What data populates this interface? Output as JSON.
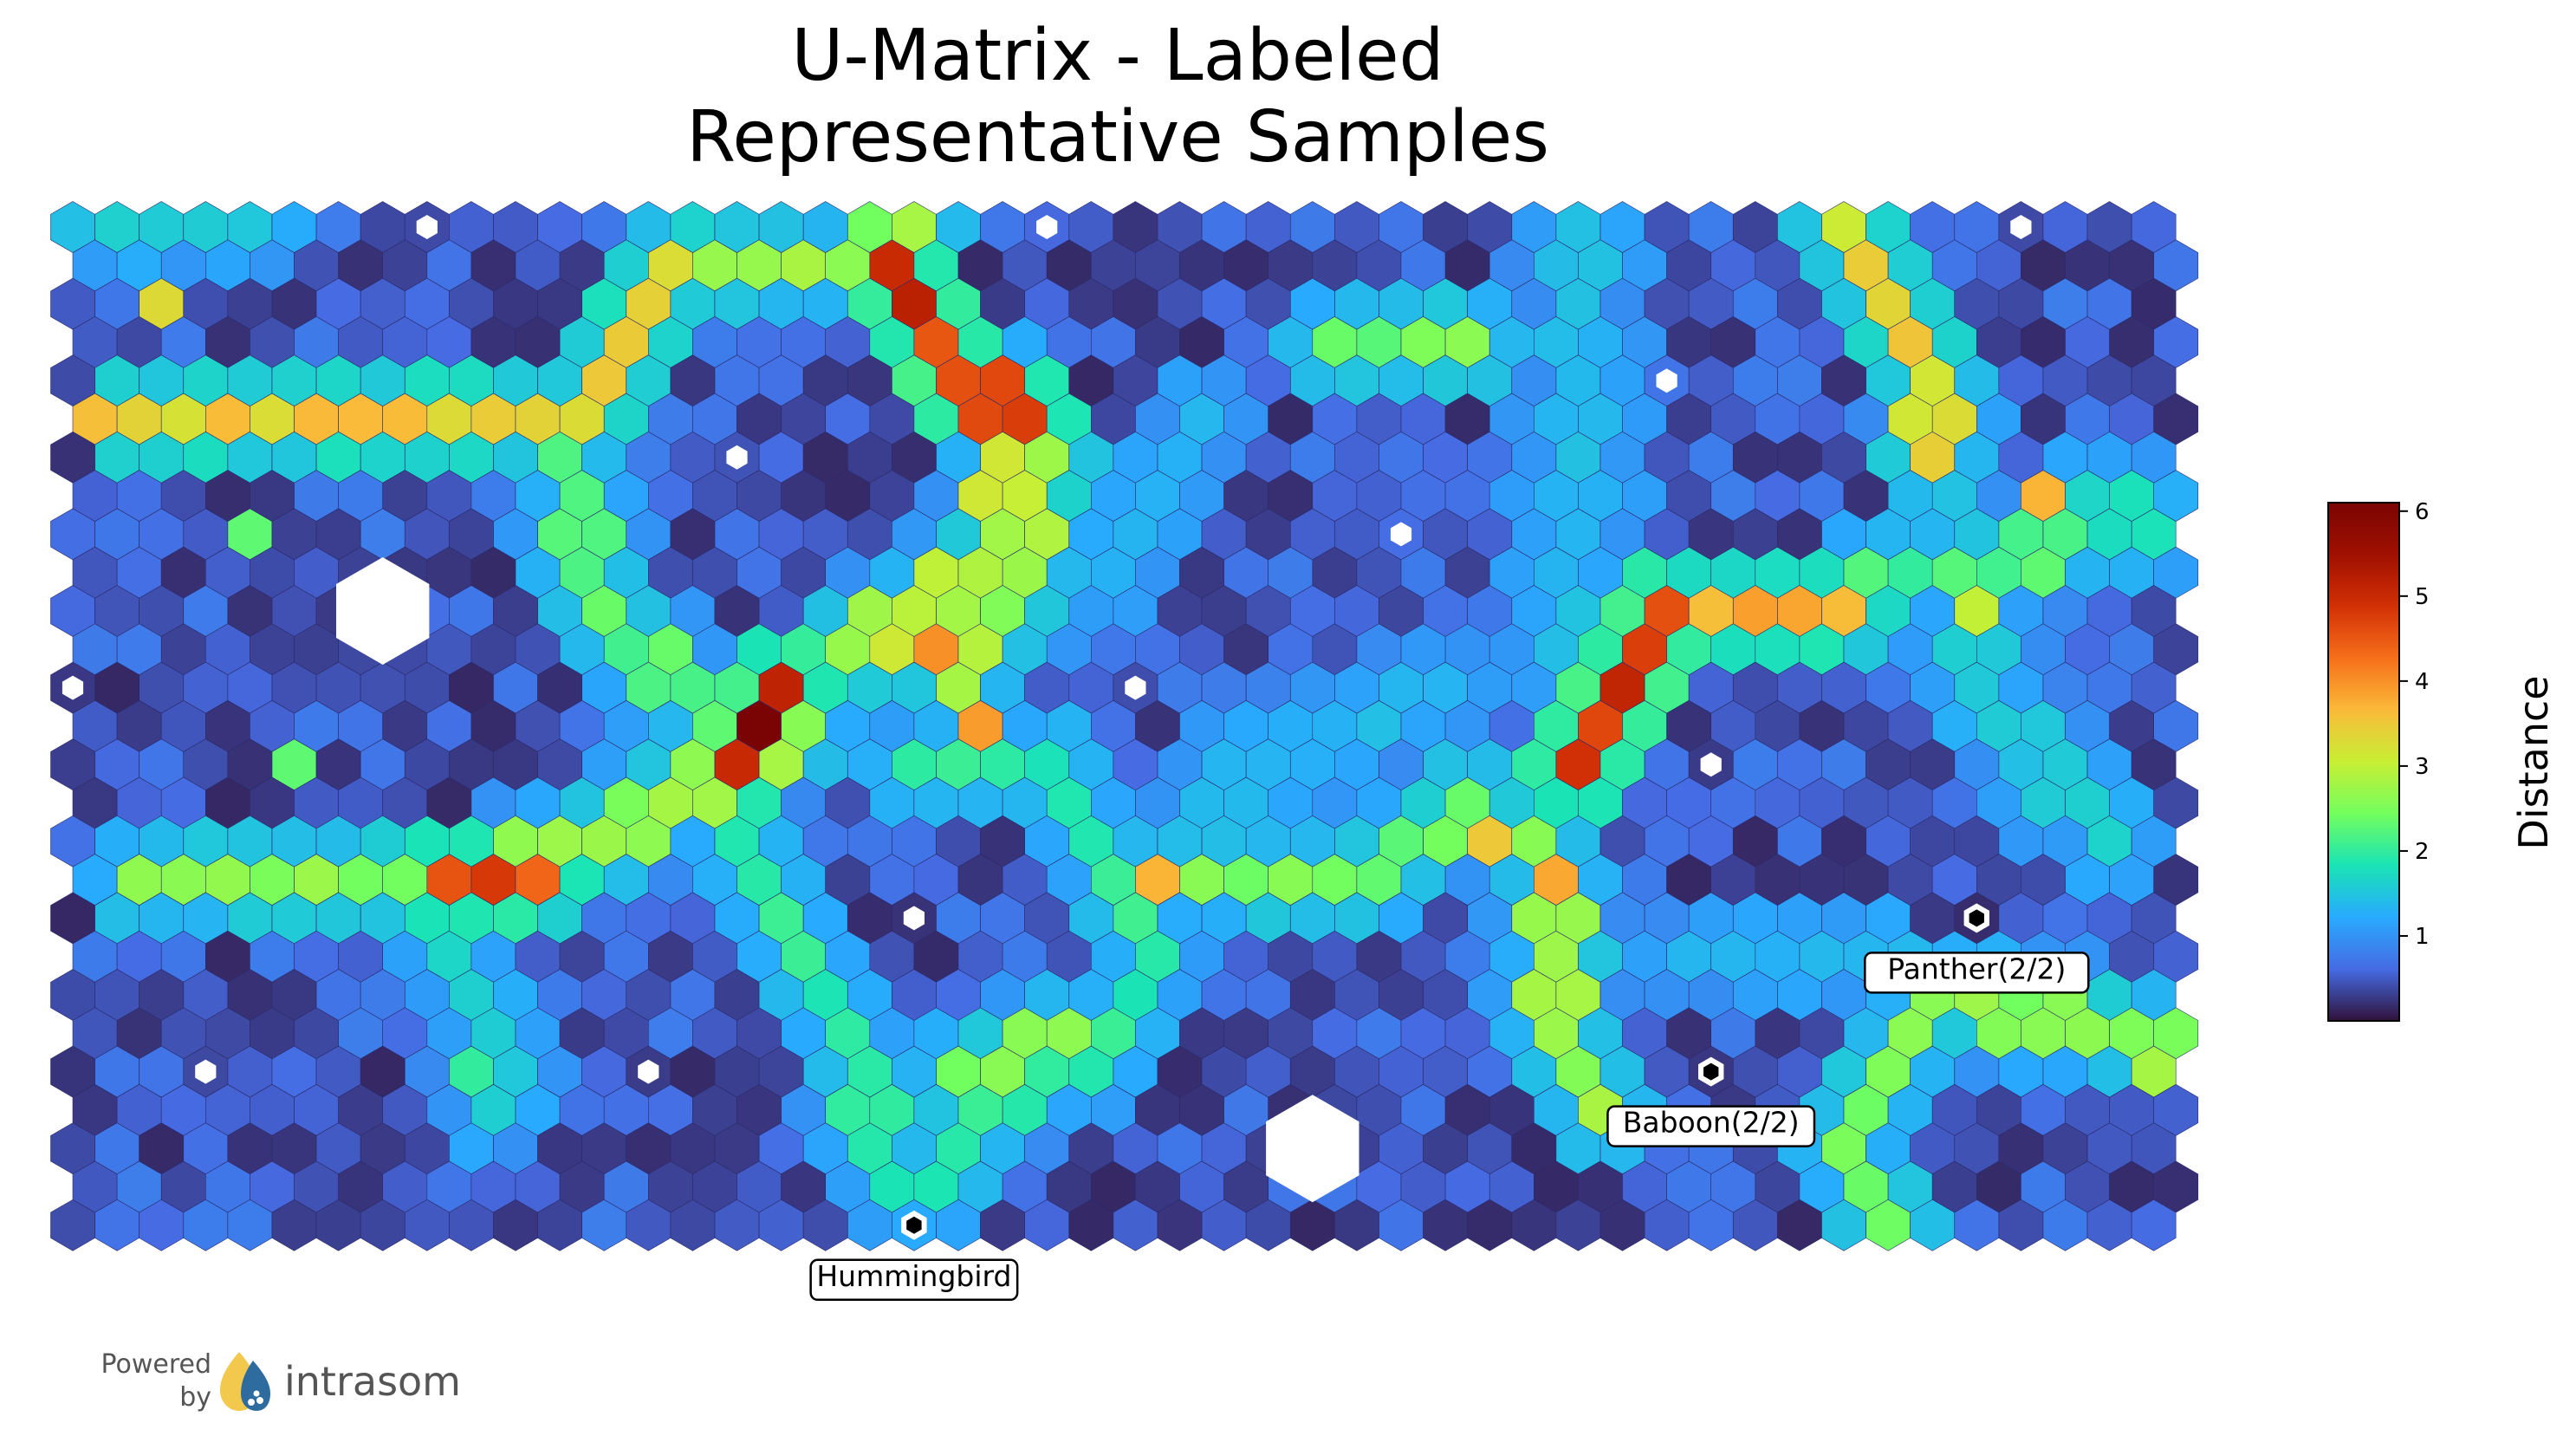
{
  "chart_data": {
    "type": "heatmap",
    "subtype": "hexagonal-u-matrix",
    "title_lines": [
      "U-Matrix - Labeled",
      "Representative Samples"
    ],
    "colorbar": {
      "label": "Distance",
      "colormap": "turbo",
      "range": [
        0.0,
        6.1
      ],
      "ticks": [
        "1",
        "2",
        "3",
        "4",
        "5",
        "6"
      ],
      "tick_values": [
        1,
        2,
        3,
        4,
        5,
        6
      ]
    },
    "grid": {
      "columns": 48,
      "rows": 27
    },
    "annotations": [
      {
        "label": "Panther(2/2)",
        "col": 43,
        "row": 18
      },
      {
        "label": "Baboon(2/2)",
        "col": 37,
        "row": 22
      },
      {
        "label": "Hummingbird",
        "col": 19,
        "row": 26
      }
    ],
    "white_markers": [
      {
        "col": 8,
        "row": 0
      },
      {
        "col": 22,
        "row": 0
      },
      {
        "col": 44,
        "row": 0
      },
      {
        "col": 36,
        "row": 4
      },
      {
        "col": 15,
        "row": 6
      },
      {
        "col": 30,
        "row": 8
      },
      {
        "col": 0,
        "row": 12
      },
      {
        "col": 24,
        "row": 12
      },
      {
        "col": 37,
        "row": 14
      },
      {
        "col": 19,
        "row": 18
      },
      {
        "col": 3,
        "row": 22
      },
      {
        "col": 13,
        "row": 22
      }
    ],
    "large_white_hexes": [
      {
        "col": 7,
        "row": 10
      },
      {
        "col": 28,
        "row": 24
      }
    ],
    "ridges": [
      {
        "points": [
          [
            1,
            5
          ],
          [
            6,
            5
          ],
          [
            11,
            5
          ],
          [
            13,
            1
          ]
        ],
        "value": 3.5
      },
      {
        "points": [
          [
            13,
            1
          ],
          [
            17,
            1
          ],
          [
            19,
            0
          ]
        ],
        "value": 2.7
      },
      {
        "points": [
          [
            18,
            1
          ],
          [
            20,
            4
          ],
          [
            21,
            5
          ]
        ],
        "value": 5.0
      },
      {
        "points": [
          [
            21,
            5
          ],
          [
            20,
            9
          ],
          [
            17,
            11
          ]
        ],
        "value": 3.0
      },
      {
        "points": [
          [
            22,
            6
          ],
          [
            21,
            9
          ],
          [
            20,
            12
          ]
        ],
        "value": 2.8
      },
      {
        "points": [
          [
            11,
            6
          ],
          [
            12,
            10
          ],
          [
            14,
            13
          ]
        ],
        "value": 2.3
      },
      {
        "points": [
          [
            1,
            17
          ],
          [
            8,
            17
          ],
          [
            12,
            16
          ],
          [
            16,
            13
          ]
        ],
        "value": 2.7
      },
      {
        "points": [
          [
            8,
            17
          ],
          [
            10,
            17
          ]
        ],
        "value": 4.6
      },
      {
        "points": [
          [
            15,
            14
          ],
          [
            16,
            12
          ]
        ],
        "value": 5.3
      },
      {
        "points": [
          [
            14,
            15
          ],
          [
            17,
            21
          ],
          [
            18,
            25
          ]
        ],
        "value": 2.0
      },
      {
        "points": [
          [
            19,
            14
          ],
          [
            22,
            14
          ],
          [
            24,
            19
          ],
          [
            23,
            21
          ],
          [
            20,
            23
          ],
          [
            19,
            25
          ]
        ],
        "value": 2.0
      },
      {
        "points": [
          [
            20,
            22
          ],
          [
            22,
            21
          ]
        ],
        "value": 2.7
      },
      {
        "points": [
          [
            24,
            17
          ],
          [
            29,
            17
          ],
          [
            31,
            15
          ],
          [
            33,
            17
          ]
        ],
        "value": 2.5
      },
      {
        "points": [
          [
            33,
            17
          ],
          [
            33,
            21
          ],
          [
            34,
            23
          ]
        ],
        "value": 2.7
      },
      {
        "points": [
          [
            34,
            14
          ],
          [
            35,
            11
          ],
          [
            36,
            10
          ]
        ],
        "value": 5.0
      },
      {
        "points": [
          [
            36,
            10
          ],
          [
            40,
            10
          ]
        ],
        "value": 3.8
      },
      {
        "points": [
          [
            40,
            0
          ],
          [
            42,
            4
          ],
          [
            42,
            6
          ]
        ],
        "value": 3.4
      },
      {
        "points": [
          [
            40,
            9
          ],
          [
            43,
            9
          ],
          [
            45,
            8
          ]
        ],
        "value": 2.2
      },
      {
        "points": [
          [
            43,
            8
          ],
          [
            43,
            12
          ],
          [
            46,
            16
          ]
        ],
        "value": 1.6
      },
      {
        "points": [
          [
            42,
            20
          ],
          [
            46,
            21
          ],
          [
            47,
            21
          ]
        ],
        "value": 2.7
      },
      {
        "points": [
          [
            41,
            21
          ],
          [
            40,
            24
          ],
          [
            41,
            26
          ]
        ],
        "value": 2.5
      },
      {
        "points": [
          [
            28,
            3
          ],
          [
            31,
            3
          ]
        ],
        "value": 2.5
      },
      {
        "points": [
          [
            25,
            5
          ],
          [
            24,
            8
          ],
          [
            22,
            10
          ]
        ],
        "value": 1.4
      },
      {
        "points": [
          [
            34,
            0
          ],
          [
            34,
            8
          ],
          [
            33,
            11
          ]
        ],
        "value": 1.4
      },
      {
        "points": [
          [
            8,
            19
          ],
          [
            9,
            21
          ],
          [
            9,
            23
          ]
        ],
        "value": 1.6
      },
      {
        "points": [
          [
            25,
            15
          ],
          [
            28,
            13
          ],
          [
            31,
            12
          ]
        ],
        "value": 1.4
      },
      {
        "points": [
          [
            36,
            19
          ],
          [
            40,
            19
          ]
        ],
        "value": 1.3
      },
      {
        "points": [
          [
            0,
            0
          ],
          [
            4,
            0
          ]
        ],
        "value": 1.6
      },
      {
        "points": [
          [
            45,
            7
          ],
          [
            47,
            8
          ]
        ],
        "value": 1.8
      }
    ],
    "peaks": [
      {
        "col": 15,
        "row": 13,
        "value": 6.1
      },
      {
        "col": 19,
        "row": 11,
        "value": 4.0
      },
      {
        "col": 20,
        "row": 13,
        "value": 3.9
      },
      {
        "col": 24,
        "row": 17,
        "value": 3.7
      },
      {
        "col": 32,
        "row": 16,
        "value": 3.5
      },
      {
        "col": 33,
        "row": 17,
        "value": 3.8
      },
      {
        "col": 44,
        "row": 7,
        "value": 3.7
      },
      {
        "col": 2,
        "row": 2,
        "value": 3.3
      },
      {
        "col": 0,
        "row": 5,
        "value": 3.6
      },
      {
        "col": 43,
        "row": 10,
        "value": 3.0
      },
      {
        "col": 37,
        "row": 10,
        "value": 3.6
      },
      {
        "col": 47,
        "row": 22,
        "value": 2.8
      },
      {
        "col": 9,
        "row": 22,
        "value": 2.0
      },
      {
        "col": 4,
        "row": 8,
        "value": 2.3
      },
      {
        "col": 5,
        "row": 14,
        "value": 2.3
      }
    ]
  },
  "branding": {
    "powered_line1": "Powered",
    "powered_line2": "by",
    "brand": "intrasom"
  },
  "colors": {
    "marker_white": "#ffffff",
    "hex_edge": "#2a2a6a"
  }
}
